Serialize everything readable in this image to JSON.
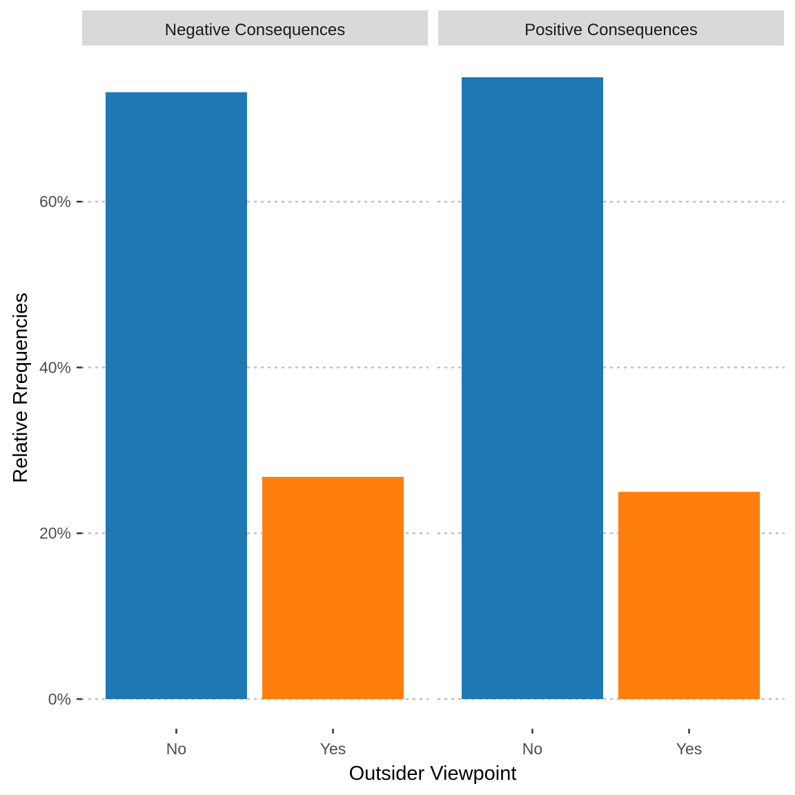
{
  "chart_data": {
    "type": "bar",
    "facet_by": "Consequences",
    "categories": [
      "No",
      "Yes"
    ],
    "panels": [
      {
        "title": "Negative Consequences",
        "values": [
          73.2,
          26.8
        ]
      },
      {
        "title": "Positive Consequences",
        "values": [
          75.0,
          25.0
        ]
      }
    ],
    "colors": {
      "No": "#1f77b4",
      "Yes": "#ff7f0e"
    },
    "xlabel": "Outsider Viewpoint",
    "ylabel": "Relative Rrequencies",
    "ylim": [
      0,
      75
    ],
    "yticks": [
      0,
      20,
      40,
      60
    ],
    "ytick_labels": [
      "0%",
      "20%",
      "40%",
      "60%"
    ],
    "grid": "horizontal-dotted",
    "legend": "none"
  }
}
